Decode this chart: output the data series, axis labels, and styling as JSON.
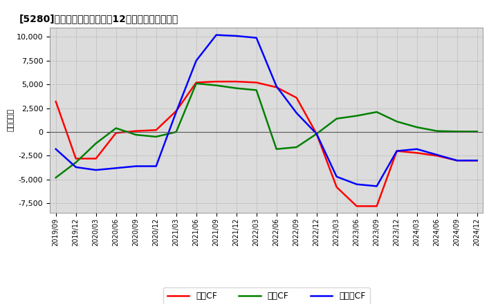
{
  "title": "[5280]　キャッシュフローの12か月移動合計の推移",
  "ylabel": "（百万円）",
  "labels": [
    "2019/09",
    "2019/12",
    "2020/03",
    "2020/06",
    "2020/09",
    "2020/12",
    "2021/03",
    "2021/06",
    "2021/09",
    "2021/12",
    "2022/03",
    "2022/06",
    "2022/09",
    "2022/12",
    "2023/03",
    "2023/06",
    "2023/09",
    "2023/12",
    "2024/03",
    "2024/06",
    "2024/09",
    "2024/12"
  ],
  "eigyo_cf": [
    3200,
    -2800,
    -2800,
    -100,
    100,
    200,
    2200,
    5200,
    5300,
    5300,
    5200,
    4700,
    3600,
    -200,
    -5800,
    -7800,
    -7800,
    -2000,
    -2200,
    -2500,
    -3000,
    -3000
  ],
  "toshi_cf": [
    -4800,
    -3200,
    -1200,
    400,
    -300,
    -500,
    0,
    5100,
    4900,
    4600,
    4400,
    -1800,
    -1600,
    -200,
    1400,
    1700,
    2100,
    1100,
    500,
    100,
    50,
    50
  ],
  "free_cf": [
    -1800,
    -3700,
    -4000,
    -3800,
    -3600,
    -3600,
    2100,
    7500,
    10200,
    10100,
    9900,
    4800,
    2000,
    -200,
    -4700,
    -5500,
    -5700,
    -2000,
    -1800,
    -2400,
    -3000,
    -3000
  ],
  "eigyo_color": "#ff0000",
  "toshi_color": "#008000",
  "free_color": "#0000ff",
  "bg_color": "#ffffff",
  "plot_bg_color": "#dcdcdc",
  "ylim": [
    -8500,
    11000
  ],
  "yticks": [
    -7500,
    -5000,
    -2500,
    0,
    2500,
    5000,
    7500,
    10000
  ],
  "legend_labels": [
    "営業CF",
    "投資CF",
    "フリーCF"
  ]
}
